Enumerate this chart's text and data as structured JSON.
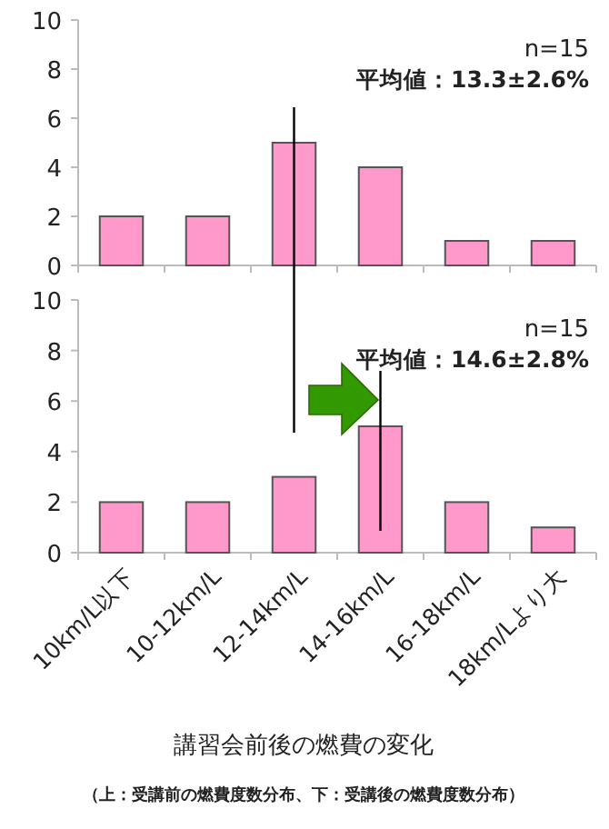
{
  "chart_data": [
    {
      "type": "bar",
      "categories": [
        null,
        null,
        null,
        null,
        null,
        null
      ],
      "values": [
        2,
        2,
        5,
        4,
        1,
        1
      ],
      "color": "#ff99cc",
      "ylim": [
        0,
        10
      ],
      "yticks": [
        0,
        2,
        4,
        6,
        8,
        10
      ],
      "tick_labels": "y",
      "annotations": [
        "n=15",
        "平均値：13.3±2.6%"
      ]
    },
    {
      "type": "bar",
      "categories": [
        "10km/L以下",
        "10-12km/L",
        "12-14km/L",
        "14-16km/L",
        "16-18km/L",
        "18km/Lより大"
      ],
      "values": [
        2,
        2,
        3,
        5,
        2,
        1
      ],
      "color": "#ff99cc",
      "ylim": [
        0,
        10
      ],
      "yticks": [
        0,
        2,
        4,
        6,
        8,
        10
      ],
      "xlabel": "講習会前後の燃費の変化",
      "annotations": [
        "n=15",
        "平均値：14.6±2.8%",
        "（上：受講前の燃費度数分布、下：受講後の燃費度数分布）"
      ],
      "ref_lines": [
        {
          "axis": "x",
          "value": "12-14km/L",
          "color": "#000000"
        },
        {
          "axis": "x",
          "value": "14-16km/L",
          "color": "#000000"
        }
      ]
    }
  ]
}
